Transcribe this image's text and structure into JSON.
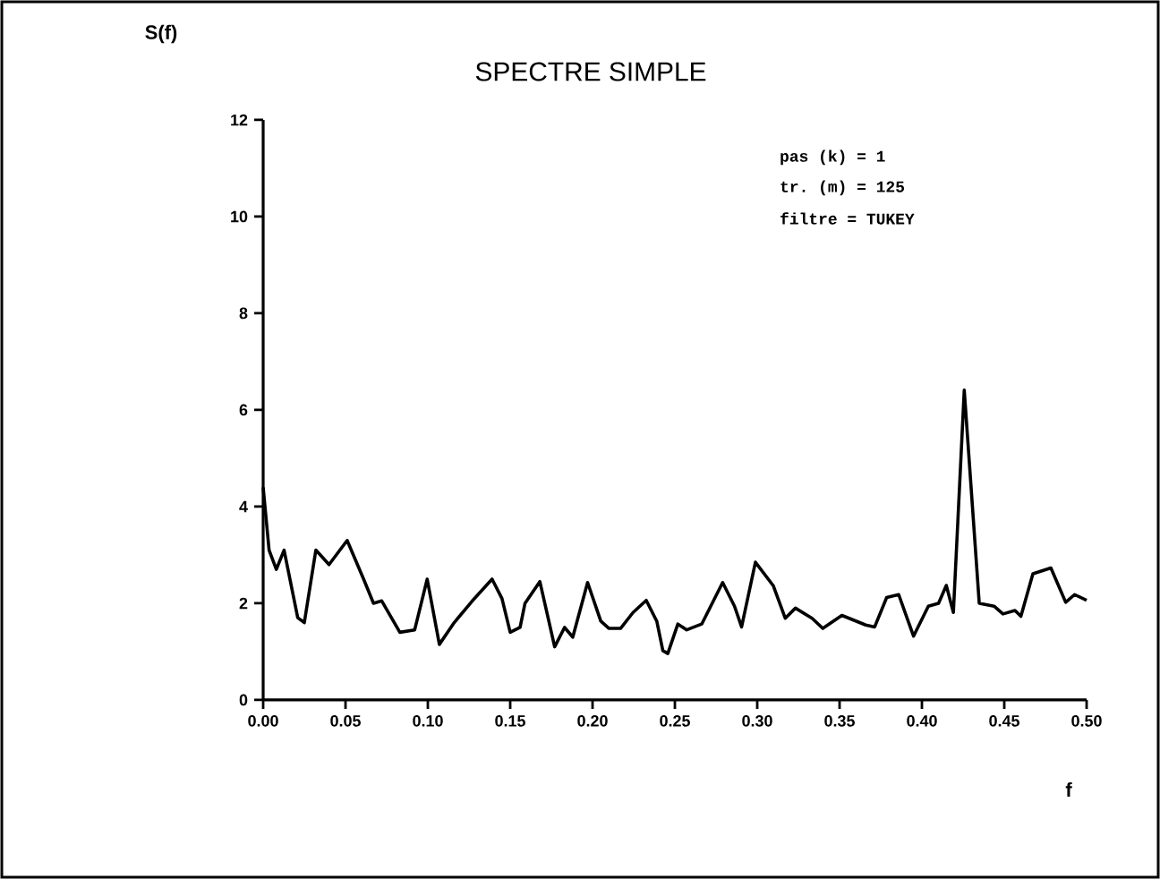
{
  "chart_data": {
    "type": "line",
    "title": "SPECTRE SIMPLE",
    "xlabel": "f",
    "ylabel": "S(f)",
    "annotations": [
      "pas (k) =  1",
      "tr. (m) =  125",
      "filtre  = TUKEY"
    ],
    "x": [
      0,
      0.0036,
      0.008,
      0.0127,
      0.021,
      0.025,
      0.032,
      0.04,
      0.051,
      0.061,
      0.067,
      0.072,
      0.083,
      0.092,
      0.0996,
      0.107,
      0.116,
      0.127,
      0.139,
      0.145,
      0.15,
      0.156,
      0.159,
      0.168,
      0.177,
      0.183,
      0.188,
      0.197,
      0.205,
      0.21,
      0.217,
      0.2246,
      0.2326,
      0.239,
      0.2427,
      0.2457,
      0.2518,
      0.2572,
      0.2663,
      0.279,
      0.2862,
      0.2905,
      0.2989,
      0.3098,
      0.317,
      0.3232,
      0.3333,
      0.3398,
      0.3514,
      0.3659,
      0.3713,
      0.3786,
      0.3859,
      0.3949,
      0.4039,
      0.4101,
      0.4148,
      0.4191,
      0.4257,
      0.4348,
      0.4438,
      0.4492,
      0.4565,
      0.4601,
      0.4674,
      0.4783,
      0.4873,
      0.4927,
      0.5
    ],
    "values": [
      4.4,
      3.1,
      2.7,
      3.1,
      1.7,
      1.6,
      3.1,
      2.8,
      3.3,
      2.5,
      2.0,
      2.05,
      1.4,
      1.45,
      2.5,
      1.15,
      1.6,
      2.05,
      2.5,
      2.1,
      1.4,
      1.5,
      2.0,
      2.45,
      1.1,
      1.5,
      1.3,
      2.43,
      1.63,
      1.48,
      1.48,
      1.81,
      2.06,
      1.63,
      1.02,
      0.96,
      1.57,
      1.45,
      1.57,
      2.43,
      1.94,
      1.51,
      2.85,
      2.36,
      1.69,
      1.9,
      1.69,
      1.48,
      1.75,
      1.55,
      1.51,
      2.12,
      2.18,
      1.32,
      1.94,
      2.0,
      2.37,
      1.81,
      6.41,
      2.0,
      1.94,
      1.78,
      1.85,
      1.73,
      2.61,
      2.73,
      2.02,
      2.18,
      2.06
    ],
    "color": "#000000",
    "xlim": [
      0,
      0.5
    ],
    "ylim": [
      0,
      12
    ],
    "xticks": [
      {
        "value": 0,
        "label": "0.00"
      },
      {
        "value": 0.05,
        "label": "0.05"
      },
      {
        "value": 0.1,
        "label": "0.10"
      },
      {
        "value": 0.15,
        "label": "0.15"
      },
      {
        "value": 0.2,
        "label": "0.20"
      },
      {
        "value": 0.25,
        "label": "0.25"
      },
      {
        "value": 0.3,
        "label": "0.30"
      },
      {
        "value": 0.35,
        "label": "0.35"
      },
      {
        "value": 0.4,
        "label": "0.40"
      },
      {
        "value": 0.45,
        "label": "0.45"
      },
      {
        "value": 0.5,
        "label": "0.50"
      }
    ],
    "yticks": [
      0,
      2,
      4,
      6,
      8,
      10,
      12
    ],
    "grid": false,
    "marker": "none",
    "line_style": "solid"
  }
}
